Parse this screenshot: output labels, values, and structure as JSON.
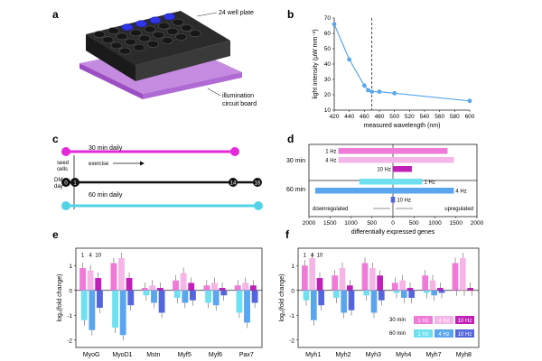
{
  "panels": {
    "a": {
      "label": "a",
      "plate_label": "24 well plate",
      "board_label_1": "illumination",
      "board_label_2": "circuit board"
    },
    "b": {
      "label": "b"
    },
    "c": {
      "label": "c",
      "daily30": "30 min daily",
      "daily60": "60 min daily",
      "seed": "seed",
      "cells": "cells",
      "exercise": "exercise",
      "dm": "DM",
      "day": "day",
      "day_marks": [
        "0",
        "1",
        "14",
        "16"
      ]
    },
    "d": {
      "label": "d"
    },
    "e": {
      "label": "e"
    },
    "f": {
      "label": "f"
    }
  },
  "legend": {
    "row30": "30 min",
    "row60": "60 min",
    "items30": [
      "1 Hz",
      "4 Hz",
      "10 Hz"
    ],
    "items60": [
      "1 Hz",
      "4 Hz",
      "10 Hz"
    ]
  },
  "colors": {
    "m1": "#f07ad8",
    "m4": "#f5b5e6",
    "m10": "#c020b8",
    "c1": "#6fe0f0",
    "c4": "#5aa6ee",
    "c10": "#5566dd",
    "magenta": "#e22ad9",
    "cyan": "#52d3e8"
  },
  "chart_data": [
    {
      "id": "b",
      "type": "line",
      "title": "",
      "xlabel": "measured wavelength (nm)",
      "ylabel": "light intensity (μW mm⁻²)",
      "x": [
        420,
        440,
        460,
        465,
        470,
        480,
        500,
        600
      ],
      "y": [
        66,
        43,
        26,
        23,
        22,
        22,
        21,
        16
      ],
      "xlim": [
        420,
        600
      ],
      "ylim": [
        10,
        70
      ],
      "xticks": [
        "420",
        "440",
        "460",
        "480",
        "500",
        "520",
        "540",
        "560",
        "580",
        "600"
      ],
      "yticks": [
        "10",
        "20",
        "30",
        "40",
        "50",
        "60",
        "70"
      ],
      "vline": 470
    },
    {
      "id": "d",
      "type": "bar",
      "xlabel": "differentially expressed genes",
      "left_note": "downregulated",
      "right_note": "upregulated",
      "xticks": [
        "2000",
        "1500",
        "1000",
        "500",
        "0",
        "500",
        "1000",
        "1500",
        "2000"
      ],
      "groups": [
        "30 min",
        "60 min"
      ],
      "series": [
        {
          "group": "30 min",
          "name": "1 Hz",
          "down": 1300,
          "up": 1300
        },
        {
          "group": "30 min",
          "name": "4 Hz",
          "down": 1300,
          "up": 1450
        },
        {
          "group": "30 min",
          "name": "10 Hz",
          "down": 0,
          "up": 450
        },
        {
          "group": "60 min",
          "name": "1 Hz",
          "down": 800,
          "up": 700
        },
        {
          "group": "60 min",
          "name": "4 Hz",
          "down": 1850,
          "up": 1450
        },
        {
          "group": "60 min",
          "name": "10 Hz",
          "down": 50,
          "up": 50
        }
      ]
    },
    {
      "id": "e",
      "type": "bar",
      "ylabel": "log₂(fold change)",
      "ylim": [
        -2.3,
        1.7
      ],
      "yticks": [
        "-2",
        "-1",
        "0",
        "1"
      ],
      "categories": [
        "MyoG",
        "MyoD1",
        "Mstn",
        "Myf5",
        "Myf6",
        "Pax7"
      ],
      "freq_labels": [
        "1",
        "4",
        "10"
      ],
      "series": [
        {
          "name": "30 min 1 Hz",
          "values": [
            0.9,
            1.1,
            0.1,
            0.4,
            0.2,
            0.2
          ]
        },
        {
          "name": "30 min 4 Hz",
          "values": [
            0.8,
            1.3,
            0.2,
            0.7,
            0.3,
            0.3
          ]
        },
        {
          "name": "30 min 10 Hz",
          "values": [
            0.5,
            0.5,
            0.1,
            0.3,
            0.1,
            0.2
          ]
        },
        {
          "name": "60 min 1 Hz",
          "values": [
            -1.2,
            -1.5,
            -0.2,
            -0.3,
            -0.5,
            -0.9
          ]
        },
        {
          "name": "60 min 4 Hz",
          "values": [
            -1.6,
            -1.8,
            -0.5,
            -0.5,
            -0.6,
            -1.3
          ]
        },
        {
          "name": "60 min 10 Hz",
          "values": [
            -0.7,
            -0.6,
            -0.9,
            -0.4,
            -0.2,
            -0.5
          ]
        }
      ]
    },
    {
      "id": "f",
      "type": "bar",
      "ylabel": "log₂(fold change)",
      "ylim": [
        -2.3,
        1.7
      ],
      "yticks": [
        "-2",
        "-1",
        "0",
        "1"
      ],
      "categories": [
        "Myh1",
        "Myh2",
        "Myh3",
        "Myh4",
        "Myh7",
        "Myh8"
      ],
      "freq_labels": [
        "1",
        "4",
        "10"
      ],
      "series": [
        {
          "name": "30 min 1 Hz",
          "values": [
            1.0,
            0.6,
            1.1,
            0.3,
            0.6,
            1.1
          ]
        },
        {
          "name": "30 min 4 Hz",
          "values": [
            1.3,
            0.9,
            0.9,
            0.4,
            0.4,
            1.3
          ]
        },
        {
          "name": "30 min 10 Hz",
          "values": [
            0.5,
            0.2,
            0.6,
            0.1,
            0.1,
            0.1
          ]
        },
        {
          "name": "60 min 1 Hz",
          "values": [
            -0.4,
            -0.3,
            -0.2,
            -0.1,
            -0.1,
            0.0
          ]
        },
        {
          "name": "60 min 4 Hz",
          "values": [
            -1.2,
            -0.9,
            -0.9,
            -0.3,
            -0.2,
            0.0
          ]
        },
        {
          "name": "60 min 10 Hz",
          "values": [
            -0.6,
            -0.8,
            -0.4,
            -0.3,
            -0.1,
            0.0
          ]
        }
      ]
    }
  ]
}
